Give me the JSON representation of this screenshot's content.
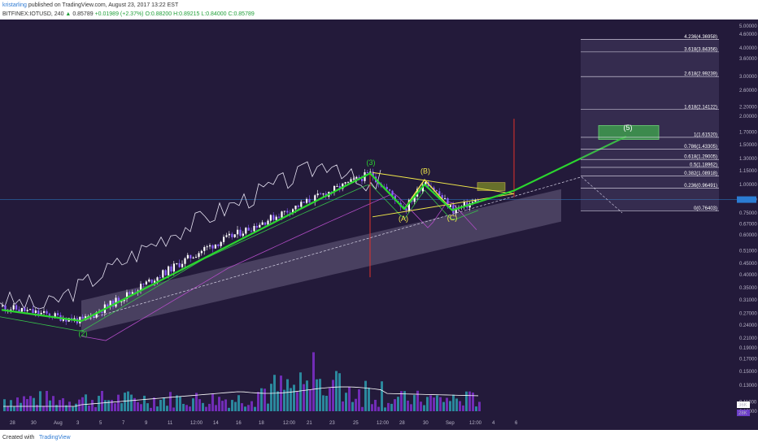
{
  "header": {
    "user": "kristarling",
    "published_text": "published on TradingView.com, August 23, 2017 13:22 EST",
    "symbol_line_prefix": "BITFINEX:IOTUSD, 240",
    "last_price": "0.85789",
    "change": "+0.01989 (+2.37%)",
    "ohlc": "O:0.88200 H:0.89215 L:0.84000 C:0.85789"
  },
  "footer": {
    "created_with": "Created with",
    "brand": "TradingView"
  },
  "colors": {
    "background": "#231a3a",
    "up_candle": "#ffffff",
    "down_candle": "#8d5fff",
    "wave_line": "#2bd52f",
    "abc_line": "#f2e94a",
    "red_line": "#e0312b",
    "volume_up": "#2c95a8",
    "volume_down": "#7a2fc4",
    "cloud": "#6a6080"
  },
  "chart_data": {
    "type": "candlestick",
    "title": "BITFINEX:IOTUSD, 240",
    "price_scale": "log",
    "y_ticks": [
      "5.00000",
      "4.60000",
      "4.00000",
      "3.60000",
      "3.00000",
      "2.60000",
      "2.20000",
      "2.00000",
      "1.70000",
      "1.50000",
      "1.30000",
      "1.15000",
      "1.00000",
      "0.85789",
      "0.75000",
      "0.67000",
      "0.60000",
      "0.51000",
      "0.45000",
      "0.40000",
      "0.35000",
      "0.31000",
      "0.27000",
      "0.24000",
      "0.21000",
      "0.19000",
      "0.17000",
      "0.15000",
      "0.13000",
      "0.11000",
      "0.10000"
    ],
    "x_ticks": [
      "28",
      "30",
      "Aug",
      "3",
      "5",
      "7",
      "9",
      "11",
      "12:00",
      "14",
      "16",
      "18",
      "12:00",
      "21",
      "23",
      "25",
      "12:00",
      "28",
      "30",
      "Sep",
      "12:00",
      "4",
      "6"
    ],
    "fibonacci_extension": [
      {
        "ratio": "4.236",
        "price": "4.36958"
      },
      {
        "ratio": "3.618",
        "price": "3.84356"
      },
      {
        "ratio": "2.618",
        "price": "2.99239"
      },
      {
        "ratio": "1.618",
        "price": "2.14122"
      },
      {
        "ratio": "1",
        "price": "1.61520"
      },
      {
        "ratio": "0.786",
        "price": "1.43305"
      },
      {
        "ratio": "0.618",
        "price": "1.29005"
      },
      {
        "ratio": "0.5",
        "price": "1.18962"
      },
      {
        "ratio": "0.382",
        "price": "1.08918"
      },
      {
        "ratio": "0.236",
        "price": "0.96491"
      },
      {
        "ratio": "0",
        "price": "0.76403"
      }
    ],
    "wave_labels": [
      "(2)",
      "(3)",
      "(A)",
      "(B)",
      "(C)",
      "(5)"
    ],
    "volume_readouts": [
      "36K",
      "28K"
    ]
  }
}
